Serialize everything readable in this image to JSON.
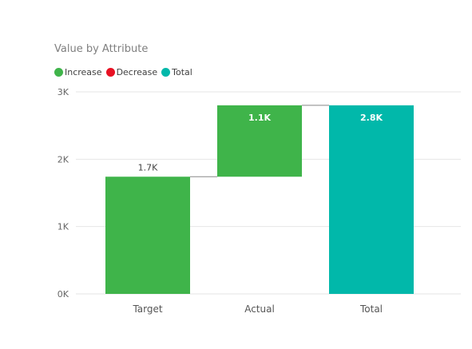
{
  "chart_data": {
    "type": "waterfall",
    "title": "Value by Attribute",
    "legend": {
      "position": "top-left",
      "entries": [
        {
          "key": "increase",
          "label": "Increase",
          "color": "#3fb44a"
        },
        {
          "key": "decrease",
          "label": "Decrease",
          "color": "#e81123"
        },
        {
          "key": "total",
          "label": "Total",
          "color": "#01b8aa"
        }
      ]
    },
    "y_axis": {
      "ylim": [
        0,
        3000
      ],
      "ticks": [
        {
          "value": 0,
          "label": "0K"
        },
        {
          "value": 1000,
          "label": "1K"
        },
        {
          "value": 2000,
          "label": "2K"
        },
        {
          "value": 3000,
          "label": "3K"
        }
      ],
      "grid": true
    },
    "categories": [
      "Target",
      "Actual",
      "Total"
    ],
    "bars": [
      {
        "category": "Target",
        "kind": "increase",
        "start": 0,
        "end": 1740,
        "label": "1.7K"
      },
      {
        "category": "Actual",
        "kind": "increase",
        "start": 1740,
        "end": 2800,
        "label": "1.1K"
      },
      {
        "category": "Total",
        "kind": "total",
        "start": 0,
        "end": 2800,
        "label": "2.8K"
      }
    ]
  }
}
